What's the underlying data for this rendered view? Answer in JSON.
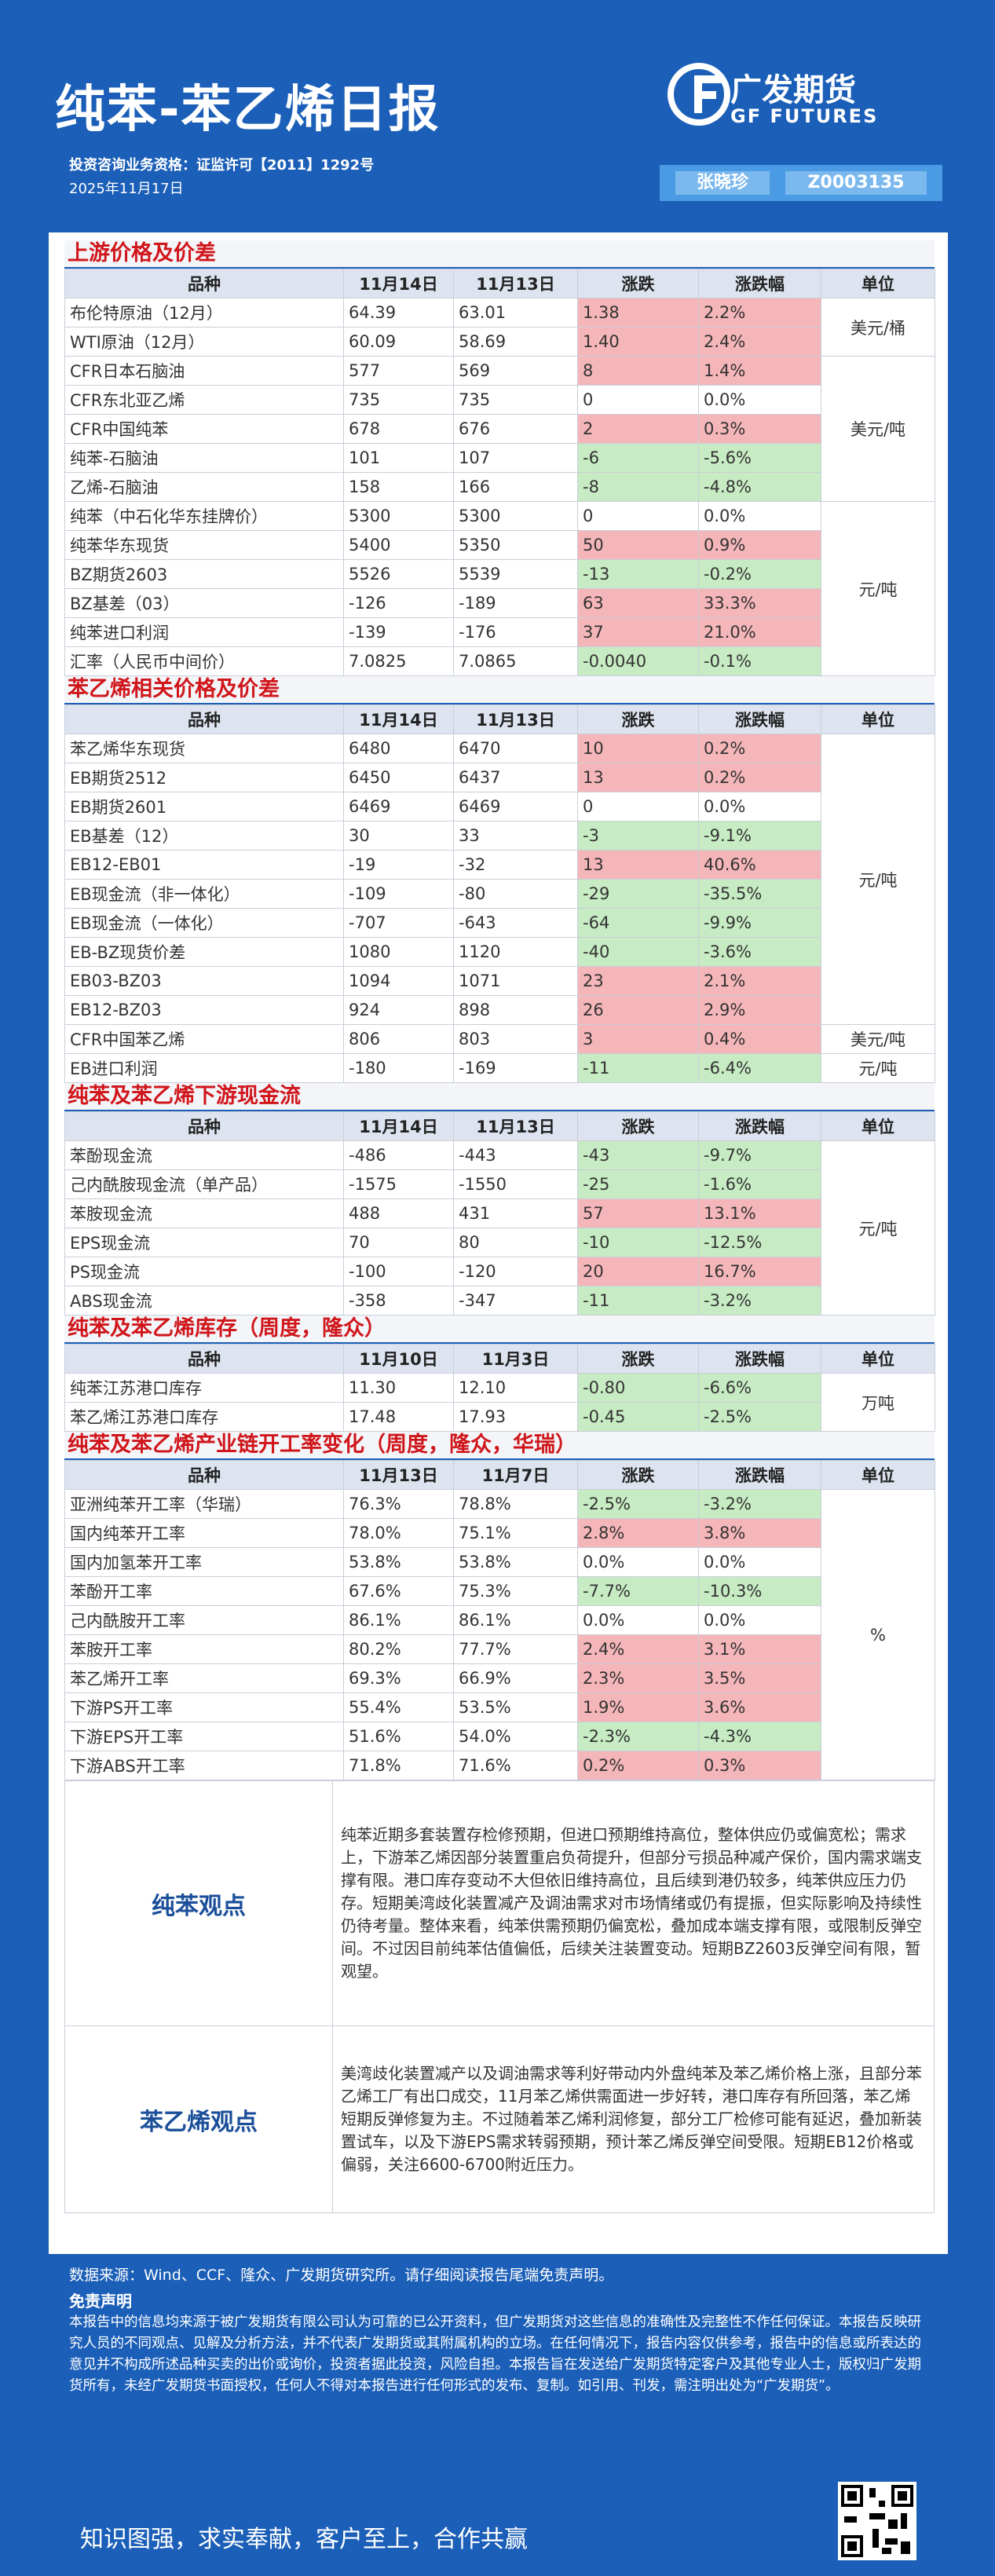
{
  "header": {
    "title": "纯苯-苯乙烯日报",
    "license": "投资咨询业务资格：证监许可【2011】1292号",
    "date": "2025年11月17日",
    "logo_cn": "广发期货",
    "logo_en": "GF FUTURES",
    "author": "张晓珍",
    "author_id": "Z0003135"
  },
  "sections": [
    {
      "title": "上游价格及价差",
      "header": [
        "品种",
        "11月14日",
        "11月13日",
        "涨跌",
        "涨跌幅",
        "单位"
      ],
      "groups": [
        {
          "unit": "美元/桶",
          "rows": [
            [
              "布伦特原油（12月）",
              "64.39",
              "63.01",
              "1.38",
              "2.2%"
            ],
            [
              "WTI原油（12月）",
              "60.09",
              "58.69",
              "1.40",
              "2.4%"
            ]
          ]
        },
        {
          "unit": "美元/吨",
          "rows": [
            [
              "CFR日本石脑油",
              "577",
              "569",
              "8",
              "1.4%"
            ],
            [
              "CFR东北亚乙烯",
              "735",
              "735",
              "0",
              "0.0%"
            ],
            [
              "CFR中国纯苯",
              "678",
              "676",
              "2",
              "0.3%"
            ],
            [
              "纯苯-石脑油",
              "101",
              "107",
              "-6",
              "-5.6%"
            ],
            [
              "乙烯-石脑油",
              "158",
              "166",
              "-8",
              "-4.8%"
            ]
          ]
        },
        {
          "unit": "元/吨",
          "rows": [
            [
              "纯苯（中石化华东挂牌价）",
              "5300",
              "5300",
              "0",
              "0.0%"
            ],
            [
              "纯苯华东现货",
              "5400",
              "5350",
              "50",
              "0.9%"
            ],
            [
              "BZ期货2603",
              "5526",
              "5539",
              "-13",
              "-0.2%"
            ],
            [
              "BZ基差（03）",
              "-126",
              "-189",
              "63",
              "33.3%"
            ],
            [
              "纯苯进口利润",
              "-139",
              "-176",
              "37",
              "21.0%"
            ],
            [
              "汇率（人民币中间价）",
              "7.0825",
              "7.0865",
              "-0.0040",
              "-0.1%"
            ]
          ]
        }
      ]
    },
    {
      "title": "苯乙烯相关价格及价差",
      "header": [
        "品种",
        "11月14日",
        "11月13日",
        "涨跌",
        "涨跌幅",
        "单位"
      ],
      "groups": [
        {
          "unit": "元/吨",
          "rows": [
            [
              "苯乙烯华东现货",
              "6480",
              "6470",
              "10",
              "0.2%"
            ],
            [
              "EB期货2512",
              "6450",
              "6437",
              "13",
              "0.2%"
            ],
            [
              "EB期货2601",
              "6469",
              "6469",
              "0",
              "0.0%"
            ],
            [
              "EB基差（12）",
              "30",
              "33",
              "-3",
              "-9.1%"
            ],
            [
              "EB12-EB01",
              "-19",
              "-32",
              "13",
              "40.6%"
            ],
            [
              "EB现金流（非一体化）",
              "-109",
              "-80",
              "-29",
              "-35.5%"
            ],
            [
              "EB现金流（一体化）",
              "-707",
              "-643",
              "-64",
              "-9.9%"
            ],
            [
              "EB-BZ现货价差",
              "1080",
              "1120",
              "-40",
              "-3.6%"
            ],
            [
              "EB03-BZ03",
              "1094",
              "1071",
              "23",
              "2.1%"
            ],
            [
              "EB12-BZ03",
              "924",
              "898",
              "26",
              "2.9%"
            ]
          ]
        },
        {
          "unit": "美元/吨",
          "rows": [
            [
              "CFR中国苯乙烯",
              "806",
              "803",
              "3",
              "0.4%"
            ]
          ]
        },
        {
          "unit": "元/吨",
          "rows": [
            [
              "EB进口利润",
              "-180",
              "-169",
              "-11",
              "-6.4%"
            ]
          ]
        }
      ]
    },
    {
      "title": "纯苯及苯乙烯下游现金流",
      "header": [
        "品种",
        "11月14日",
        "11月13日",
        "涨跌",
        "涨跌幅",
        "单位"
      ],
      "groups": [
        {
          "unit": "元/吨",
          "rows": [
            [
              "苯酚现金流",
              "-486",
              "-443",
              "-43",
              "-9.7%"
            ],
            [
              "己内酰胺现金流（单产品）",
              "-1575",
              "-1550",
              "-25",
              "-1.6%"
            ],
            [
              "苯胺现金流",
              "488",
              "431",
              "57",
              "13.1%"
            ],
            [
              "EPS现金流",
              "70",
              "80",
              "-10",
              "-12.5%"
            ],
            [
              "PS现金流",
              "-100",
              "-120",
              "20",
              "16.7%"
            ],
            [
              "ABS现金流",
              "-358",
              "-347",
              "-11",
              "-3.2%"
            ]
          ]
        }
      ]
    },
    {
      "title": "纯苯及苯乙烯库存（周度，隆众）",
      "header": [
        "品种",
        "11月10日",
        "11月3日",
        "涨跌",
        "涨跌幅",
        "单位"
      ],
      "groups": [
        {
          "unit": "万吨",
          "rows": [
            [
              "纯苯江苏港口库存",
              "11.30",
              "12.10",
              "-0.80",
              "-6.6%"
            ],
            [
              "苯乙烯江苏港口库存",
              "17.48",
              "17.93",
              "-0.45",
              "-2.5%"
            ]
          ]
        }
      ]
    },
    {
      "title": "纯苯及苯乙烯产业链开工率变化（周度，隆众，华瑞）",
      "header": [
        "品种",
        "11月13日",
        "11月7日",
        "涨跌",
        "涨跌幅",
        "单位"
      ],
      "groups": [
        {
          "unit": "%",
          "rows": [
            [
              "亚洲纯苯开工率（华瑞）",
              "76.3%",
              "78.8%",
              "-2.5%",
              "-3.2%"
            ],
            [
              "国内纯苯开工率",
              "78.0%",
              "75.1%",
              "2.8%",
              "3.8%"
            ],
            [
              "国内加氢苯开工率",
              "53.8%",
              "53.8%",
              "0.0%",
              "0.0%"
            ],
            [
              "苯酚开工率",
              "67.6%",
              "75.3%",
              "-7.7%",
              "-10.3%"
            ],
            [
              "己内酰胺开工率",
              "86.1%",
              "86.1%",
              "0.0%",
              "0.0%"
            ],
            [
              "苯胺开工率",
              "80.2%",
              "77.7%",
              "2.4%",
              "3.1%"
            ],
            [
              "苯乙烯开工率",
              "69.3%",
              "66.9%",
              "2.3%",
              "3.5%"
            ],
            [
              "下游PS开工率",
              "55.4%",
              "53.5%",
              "1.9%",
              "3.6%"
            ],
            [
              "下游EPS开工率",
              "51.6%",
              "54.0%",
              "-2.3%",
              "-4.3%"
            ],
            [
              "下游ABS开工率",
              "71.8%",
              "71.6%",
              "0.2%",
              "0.3%"
            ]
          ]
        }
      ]
    }
  ],
  "views": [
    {
      "label": "纯苯观点",
      "text": "纯苯近期多套装置存检修预期，但进口预期维持高位，整体供应仍或偏宽松；需求上，下游苯乙烯因部分装置重启负荷提升，但部分亏损品种减产保价，国内需求端支撑有限。港口库存变动不大但依旧维持高位，且后续到港仍较多，纯苯供应压力仍存。短期美湾歧化装置减产及调油需求对市场情绪或仍有提振，但实际影响及持续性仍待考量。整体来看，纯苯供需预期仍偏宽松，叠加成本端支撑有限，或限制反弹空间。不过因目前纯苯估值偏低，后续关注装置变动。短期BZ2603反弹空间有限，暂观望。"
    },
    {
      "label": "苯乙烯观点",
      "text": "美湾歧化装置减产以及调油需求等利好带动内外盘纯苯及苯乙烯价格上涨，且部分苯乙烯工厂有出口成交，11月苯乙烯供需面进一步好转，港口库存有所回落，苯乙烯短期反弹修复为主。不过随着苯乙烯利润修复，部分工厂检修可能有延迟，叠加新装置试车，以及下游EPS需求转弱预期，预计苯乙烯反弹空间受限。短期EB12价格或偏弱，关注6600-6700附近压力。"
    }
  ],
  "footer": {
    "source": "数据来源：Wind、CCF、隆众、广发期货研究所。请仔细阅读报告尾端免责声明。",
    "disclaimer_title": "免责声明",
    "disclaimer": "本报告中的信息均来源于被广发期货有限公司认为可靠的已公开资料，但广发期货对这些信息的准确性及完整性不作任何保证。本报告反映研究人员的不同观点、见解及分析方法，并不代表广发期货或其附属机构的立场。在任何情况下，报告内容仅供参考，报告中的信息或所表达的意见并不构成所述品种买卖的出价或询价，投资者据此投资，风险自担。本报告旨在发送给广发期货特定客户及其他专业人士，版权归广发期货所有，未经广发期货书面授权，任何人不得对本报告进行任何形式的发布、复制。如引用、刊发，需注明出处为“广发期货”。",
    "slogan": "知识图强，求实奉献，客户至上，合作共赢"
  }
}
